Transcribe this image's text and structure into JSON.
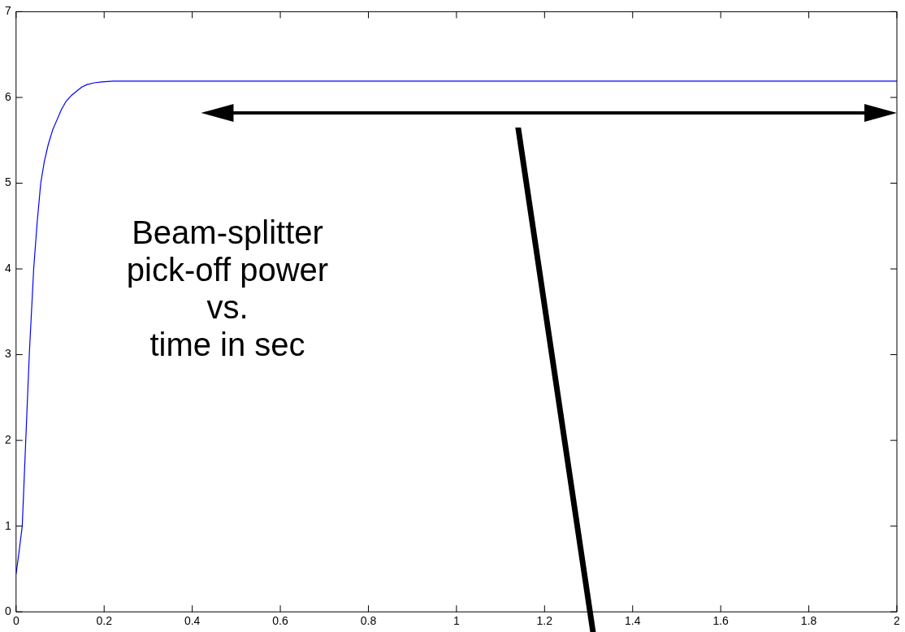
{
  "chart_data": {
    "type": "line",
    "annotations": [
      "Beam-splitter\npick-off power\nvs.\ntime in sec"
    ],
    "series": [
      {
        "color": "#0000ff",
        "x": [
          0,
          0.0065,
          0.014,
          0.022,
          0.03,
          0.04,
          0.048,
          0.056,
          0.064,
          0.073,
          0.083,
          0.093,
          0.103,
          0.113,
          0.125,
          0.137,
          0.149,
          0.161,
          0.177,
          0.194,
          0.22,
          0.25,
          0.3,
          0.4,
          1,
          2
        ],
        "values": [
          0.44,
          0.69,
          1.0,
          2.0,
          3.0,
          4.0,
          4.55,
          5.0,
          5.25,
          5.45,
          5.62,
          5.74,
          5.86,
          5.95,
          6.02,
          6.07,
          6.12,
          6.15,
          6.17,
          6.18,
          6.19,
          6.19,
          6.19,
          6.19,
          6.19,
          6.19
        ]
      }
    ],
    "xlim": [
      0,
      2
    ],
    "xticks": [
      0,
      0.2,
      0.4,
      0.6,
      0.8,
      1,
      1.2,
      1.4,
      1.6,
      1.8,
      2
    ],
    "ylim": [
      0,
      7
    ],
    "yticks": [
      0,
      1,
      2,
      3,
      4,
      5,
      6,
      7
    ],
    "grid": false,
    "legend": false,
    "marker": "none",
    "line_style": "solid"
  }
}
